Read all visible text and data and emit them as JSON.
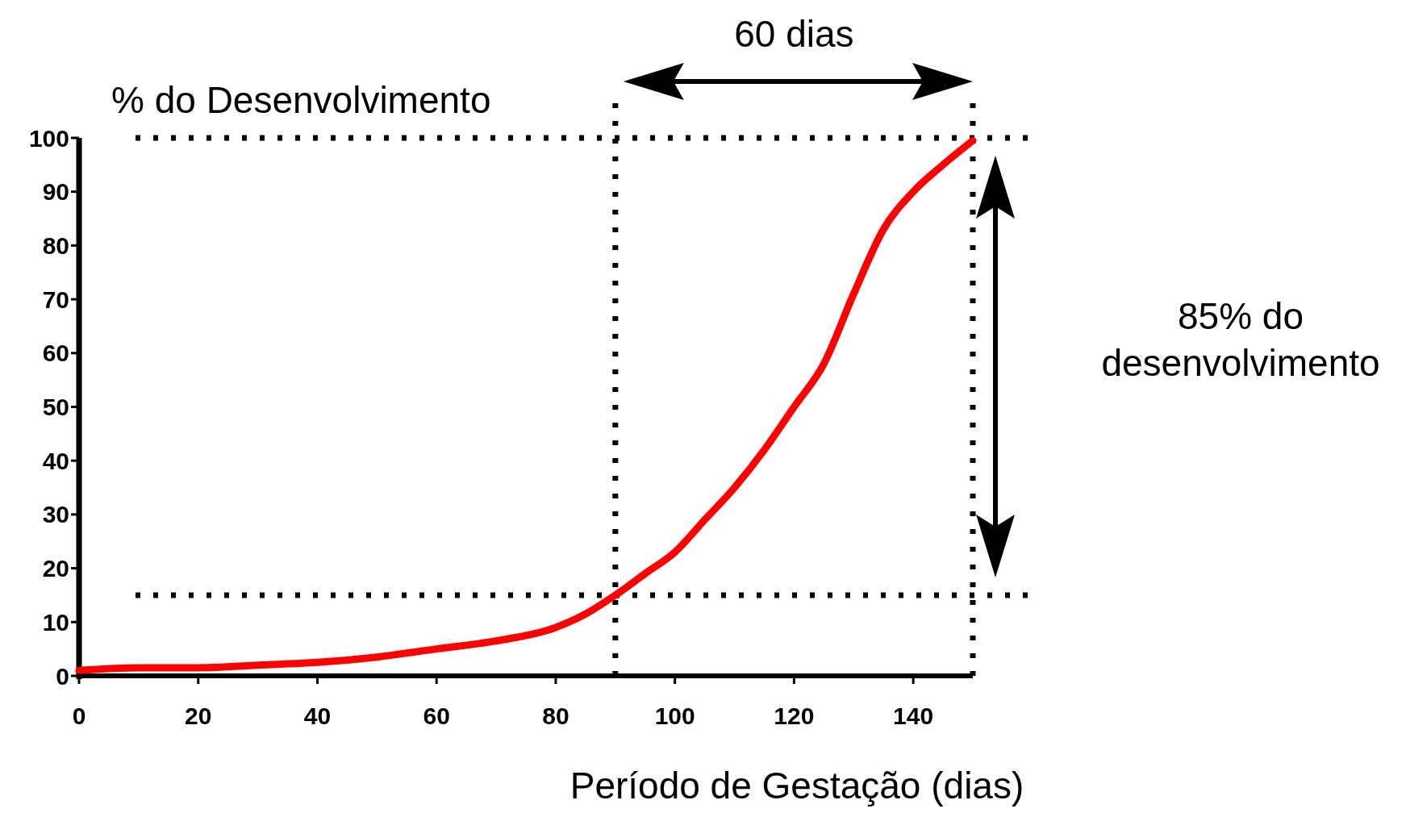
{
  "chart_data": {
    "type": "line",
    "xlabel": "Período de Gestação (dias)",
    "ylabel": "% do Desenvolvimento",
    "x": [
      0,
      10,
      20,
      30,
      40,
      50,
      60,
      70,
      80,
      85,
      90,
      95,
      100,
      105,
      110,
      115,
      120,
      125,
      130,
      135,
      140,
      145,
      150
    ],
    "series": [
      {
        "color": "#ff0000",
        "values": [
          1,
          1.5,
          1.5,
          2,
          2.5,
          3.5,
          5,
          6.5,
          9,
          11.5,
          15,
          19,
          23,
          29,
          35,
          42,
          50,
          58,
          71,
          83,
          90,
          95,
          99.5
        ]
      }
    ],
    "xlim": [
      0,
      150
    ],
    "ylim": [
      0,
      100
    ],
    "xticks": [
      0,
      20,
      40,
      60,
      80,
      100,
      120,
      140
    ],
    "yticks": [
      0,
      10,
      20,
      30,
      40,
      50,
      60,
      70,
      80,
      90,
      100
    ],
    "grid": false,
    "marker": "none",
    "line_style": "solid",
    "ref_lines": [
      {
        "axis": "x",
        "value": 90,
        "color": "#000000",
        "line_style": "dotted"
      },
      {
        "axis": "x",
        "value": 150,
        "color": "#000000",
        "line_style": "dotted"
      },
      {
        "axis": "y",
        "value": 15,
        "color": "#000000",
        "line_style": "dotted"
      },
      {
        "axis": "y",
        "value": 100,
        "color": "#000000",
        "line_style": "dotted"
      }
    ],
    "annotations": [
      "60 dias",
      "85% do desenvolvimento"
    ]
  }
}
